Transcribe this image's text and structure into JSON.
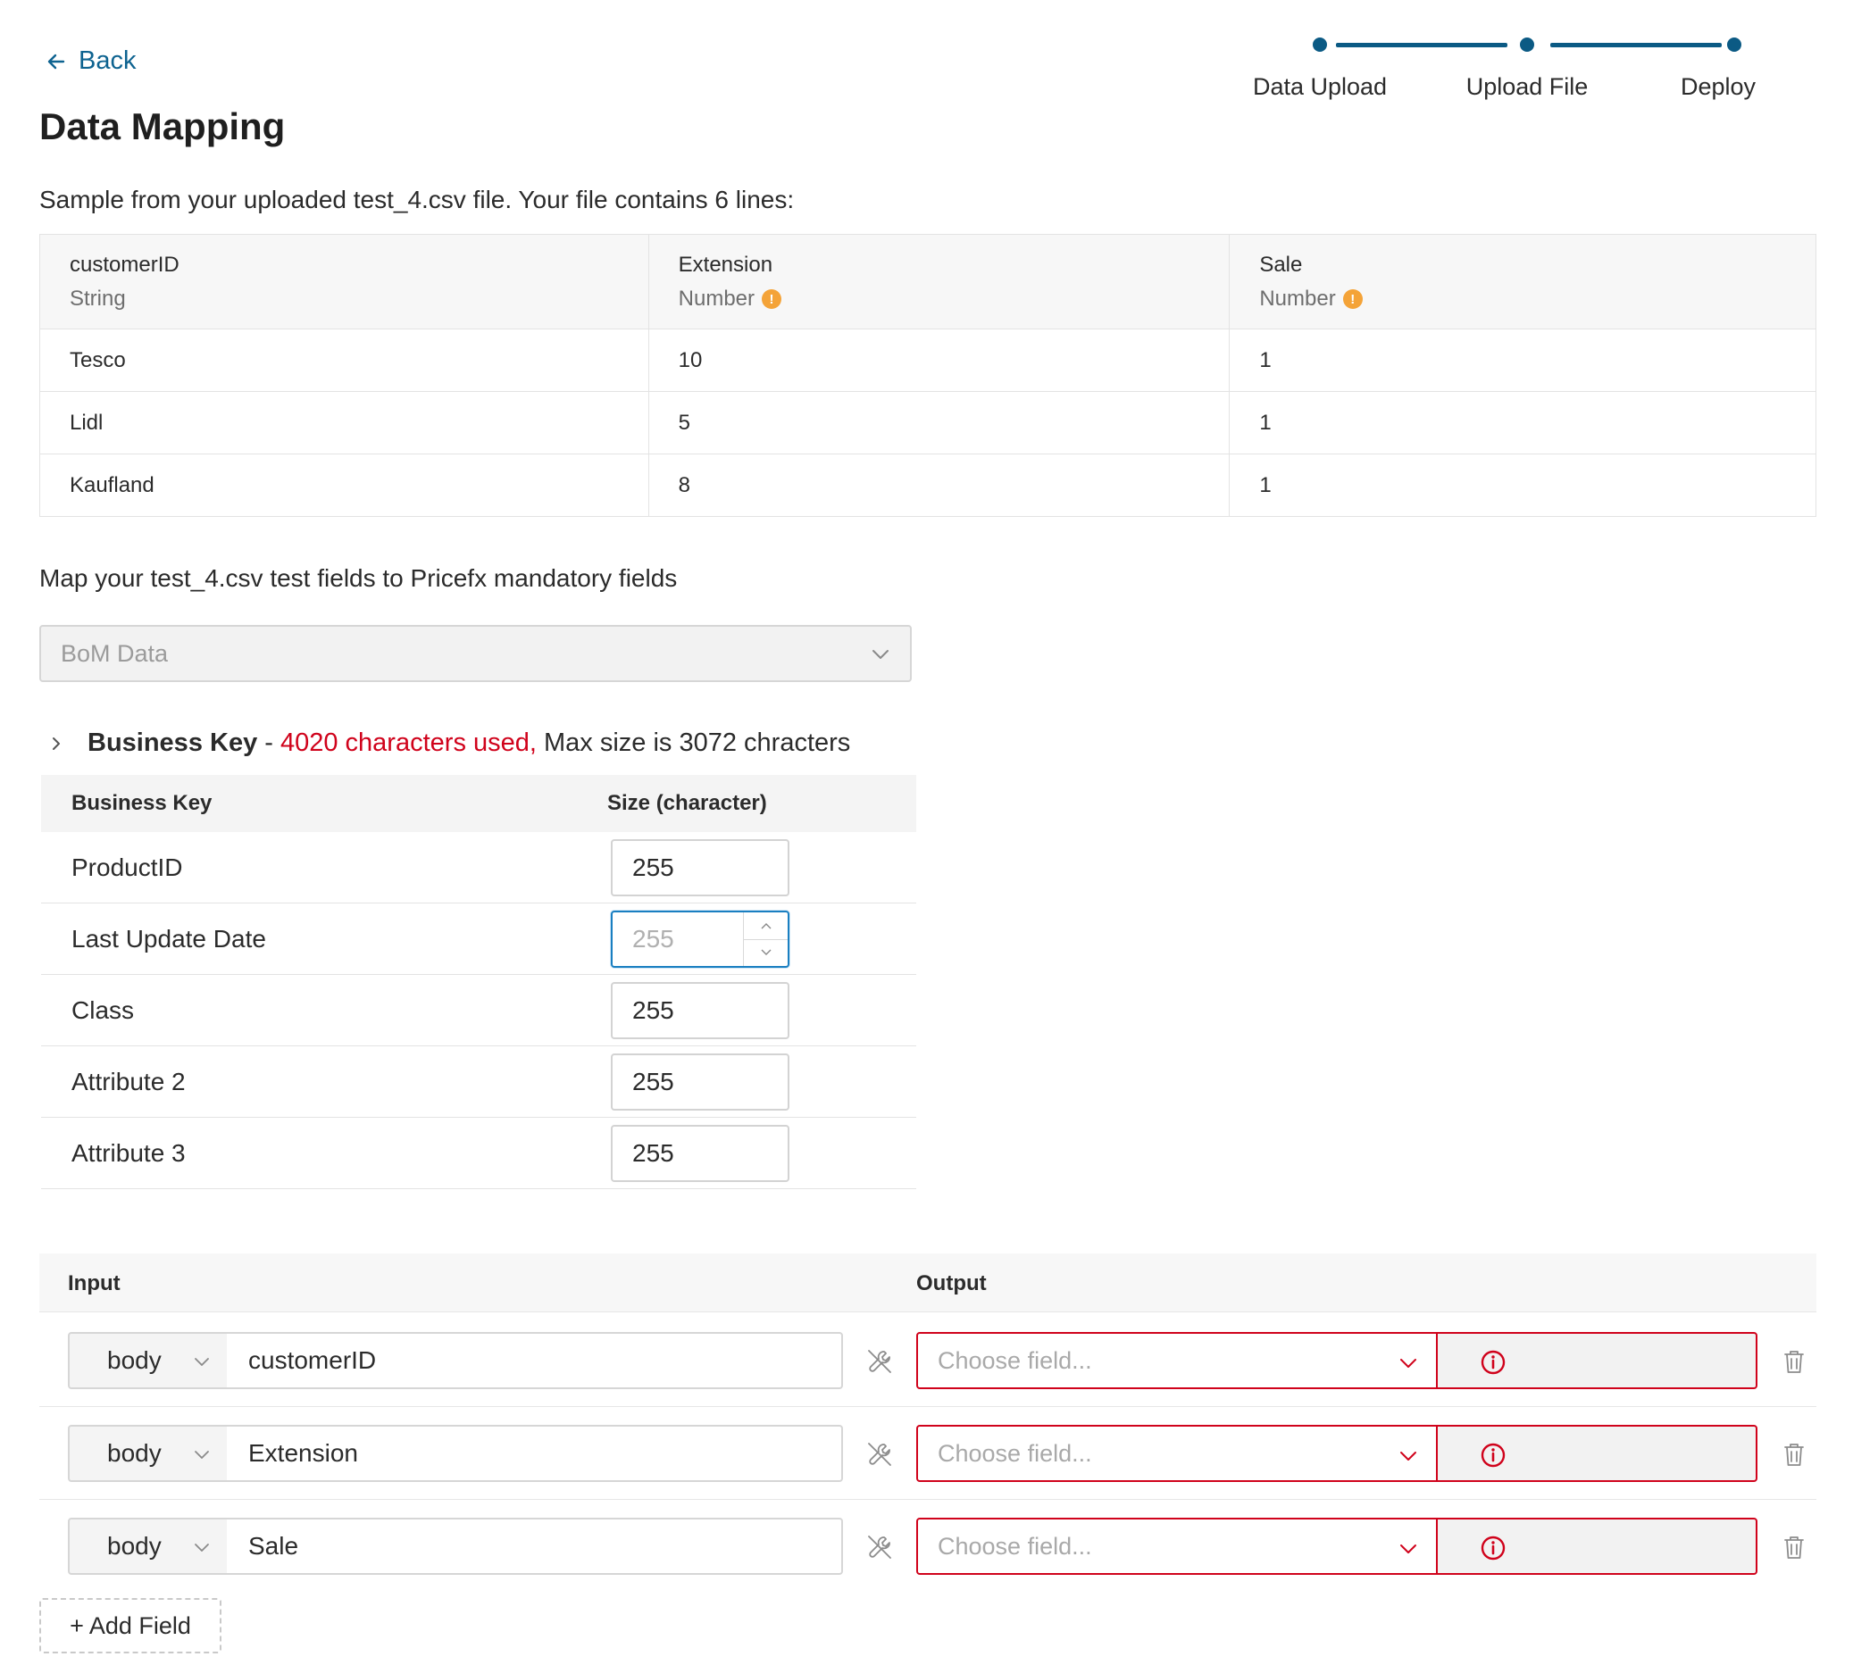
{
  "nav": {
    "back_label": "Back"
  },
  "page": {
    "title": "Data Mapping"
  },
  "stepper": {
    "steps": [
      {
        "label": "Data Upload"
      },
      {
        "label": "Upload File"
      },
      {
        "label": "Deploy"
      }
    ],
    "color": "#0b5a84"
  },
  "sample": {
    "description": "Sample from your uploaded test_4.csv file. Your file contains 6 lines:",
    "columns": [
      {
        "name": "customerID",
        "type": "String",
        "warning": false
      },
      {
        "name": "Extension",
        "type": "Number",
        "warning": true
      },
      {
        "name": "Sale",
        "type": "Number",
        "warning": true
      }
    ],
    "rows": [
      [
        "Tesco",
        "10",
        "1"
      ],
      [
        "Lidl",
        "5",
        "1"
      ],
      [
        "Kaufland",
        "8",
        "1"
      ]
    ]
  },
  "mapping": {
    "description": "Map your test_4.csv test fields to Pricefx mandatory fields",
    "type_select": {
      "value": "BoM Data",
      "disabled": true
    }
  },
  "business_key": {
    "title": "Business Key",
    "separator": " - ",
    "error_text": "4020 characters used,",
    "max_text": " Max size is 3072 chracters",
    "headers": {
      "key": "Business Key",
      "size": "Size (character)"
    },
    "rows": [
      {
        "key": "ProductID",
        "size": "255",
        "focused": false
      },
      {
        "key": "Last Update Date",
        "size": "255",
        "focused": true
      },
      {
        "key": "Class",
        "size": "255",
        "focused": false
      },
      {
        "key": "Attribute 2",
        "size": "255",
        "focused": false
      },
      {
        "key": "Attribute 3",
        "size": "255",
        "focused": false
      }
    ]
  },
  "io": {
    "headers": {
      "input": "Input",
      "output": "Output"
    },
    "rows": [
      {
        "source": "body",
        "field": "customerID",
        "output_placeholder": "Choose field..."
      },
      {
        "source": "body",
        "field": "Extension",
        "output_placeholder": "Choose field..."
      },
      {
        "source": "body",
        "field": "Sale",
        "output_placeholder": "Choose field..."
      }
    ],
    "add_label": "+ Add Field",
    "error_color": "#d0021b"
  }
}
